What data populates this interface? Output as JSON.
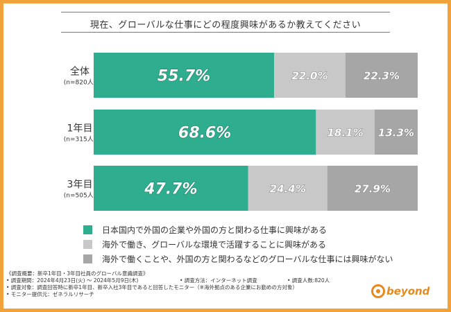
{
  "chart_data": {
    "type": "bar",
    "stacked": true,
    "orientation": "horizontal",
    "title": "現在、グローバルな仕事にどの程度興味があるか教えてください",
    "categories": [
      {
        "label": "全体",
        "sub": "(n=820人)"
      },
      {
        "label": "1年目",
        "sub": "(n=315人)"
      },
      {
        "label": "3年目",
        "sub": "(n=505人)"
      }
    ],
    "series": [
      {
        "name": "日本国内で外国の企業や外国の方と関わる仕事に興味がある",
        "color": "#2fae8f",
        "values": [
          55.7,
          68.6,
          47.7
        ],
        "labels": [
          "55.7%",
          "68.6%",
          "47.7%"
        ]
      },
      {
        "name": "海外で働き、グローバルな環境で活躍することに興味がある",
        "color": "#c8c8c8",
        "values": [
          22.0,
          18.1,
          24.4
        ],
        "labels": [
          "22.0%",
          "18.1%",
          "24.4%"
        ]
      },
      {
        "name": "海外で働くことや、外国の方と関わるなどのグローバルな仕事には興味がない",
        "color": "#a6a6a6",
        "values": [
          22.3,
          13.3,
          27.9
        ],
        "labels": [
          "22.3%",
          "13.3%",
          "27.9%"
        ]
      }
    ],
    "xlim": [
      0,
      100
    ],
    "legend_position": "bottom",
    "grid": false
  },
  "notes": [
    "《調査概要：新卒1年目・3年目社員のグローバル意識調査》",
    "• 調査期間：2024年4月23日(火) ～ 2024年5月9日(木)",
    "• 調査方法：インターネット調査",
    "• 調査人数:820人",
    "• 調査対象：調査回答時に新卒1年目、新卒入社3年目であると回答したモニター（※海外拠点のある企業にお勤めの方対象）",
    "• モニター提供元：ゼネラルリサーチ"
  ],
  "logo": {
    "text": "beyond",
    "color": "#e8891e"
  },
  "frame_color": "#f2a23a"
}
